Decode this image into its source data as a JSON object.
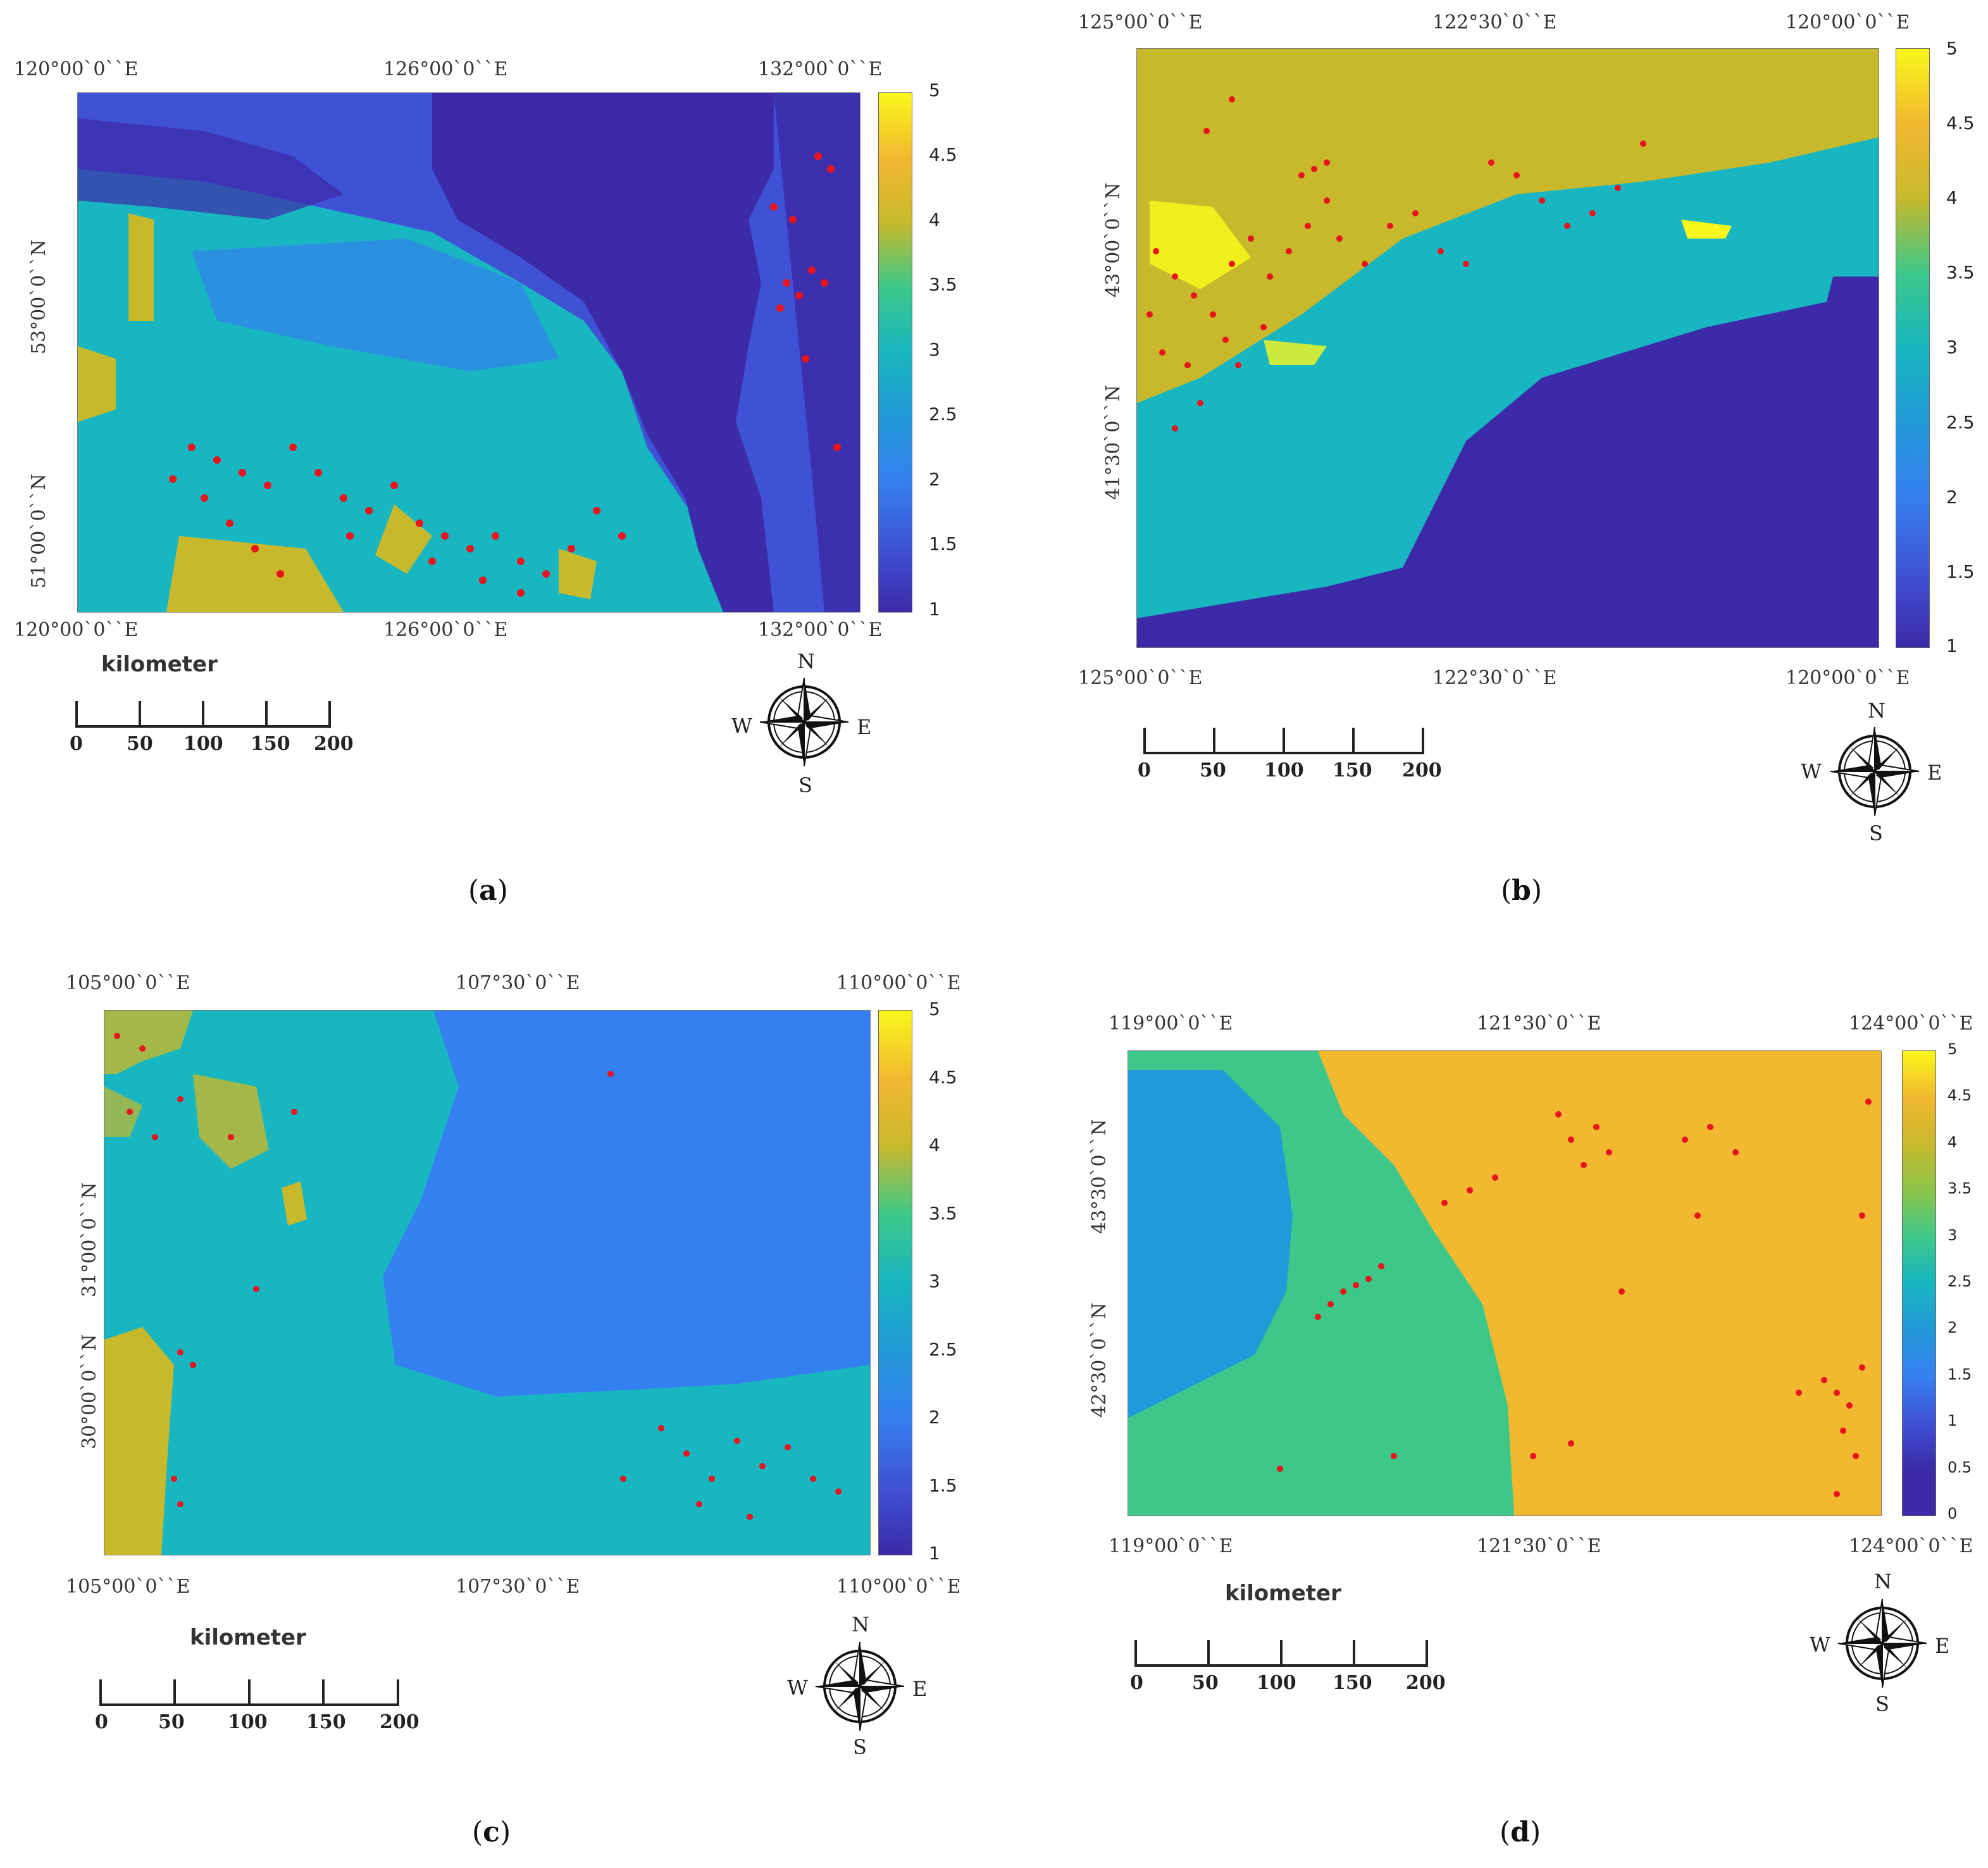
{
  "panels": {
    "a": {
      "caption": "a",
      "top_lon": [
        "120°00`0``E",
        "126°00`0``E",
        "132°00`0``E"
      ],
      "bottom_lon": [
        "120°00`0``E",
        "126°00`0``E",
        "132°00`0``E"
      ],
      "lat": [
        "53°00`0``N",
        "51°00`0``N"
      ],
      "colorbar_ticks": [
        "5",
        "4.5",
        "4",
        "3.5",
        "3",
        "2.5",
        "2",
        "1.5",
        "1"
      ],
      "scale_title": "kilometer",
      "scale_ticks": [
        "0",
        "50",
        "100",
        "150",
        "200"
      ],
      "compass": [
        "N",
        "S",
        "W",
        "E"
      ]
    },
    "b": {
      "caption": "b",
      "top_lon": [
        "125°00`0``E",
        "122°30`0``E",
        "120°00`0``E"
      ],
      "bottom_lon": [
        "125°00`0``E",
        "122°30`0``E",
        "120°00`0``E"
      ],
      "lat": [
        "43°00`0``N",
        "41°30`0``N"
      ],
      "colorbar_ticks": [
        "5",
        "4.5",
        "4",
        "3.5",
        "3",
        "2.5",
        "2",
        "1.5",
        "1"
      ],
      "scale_ticks": [
        "0",
        "50",
        "100",
        "150",
        "200"
      ],
      "compass": [
        "N",
        "S",
        "W",
        "E"
      ]
    },
    "c": {
      "caption": "c",
      "top_lon": [
        "105°00`0``E",
        "107°30`0``E",
        "110°00`0``E"
      ],
      "bottom_lon": [
        "105°00`0``E",
        "107°30`0``E",
        "110°00`0``E"
      ],
      "lat": [
        "31°00`0``N",
        "30°00`0``N"
      ],
      "colorbar_ticks": [
        "5",
        "4.5",
        "4",
        "3.5",
        "3",
        "2.5",
        "2",
        "1.5",
        "1"
      ],
      "scale_title": "kilometer",
      "scale_ticks": [
        "0",
        "50",
        "100",
        "150",
        "200"
      ],
      "compass": [
        "N",
        "S",
        "W",
        "E"
      ]
    },
    "d": {
      "caption": "d",
      "top_lon": [
        "119°00`0``E",
        "121°30`0``E",
        "124°00`0``E"
      ],
      "bottom_lon": [
        "119°00`0``E",
        "121°30`0``E",
        "124°00`0``E"
      ],
      "lat": [
        "43°30`0``N",
        "42°30`0``N"
      ],
      "colorbar_ticks": [
        "5",
        "4.5",
        "4",
        "3.5",
        "3",
        "2.5",
        "2",
        "1.5",
        "1",
        "0.5",
        "0"
      ],
      "scale_title": "kilometer",
      "scale_ticks": [
        "0",
        "50",
        "100",
        "150",
        "200"
      ],
      "compass": [
        "N",
        "S",
        "W",
        "E"
      ]
    }
  },
  "colors": {
    "level1": "#3d2aa8",
    "level1_5": "#3f52d6",
    "level2": "#3580f0",
    "level2_5": "#2299d8",
    "level3": "#18b6c0",
    "level3_5": "#3dc88a",
    "level4": "#c8b92c",
    "level4_5": "#f2b830",
    "level5": "#f9f71b",
    "points": "#e8141e"
  }
}
